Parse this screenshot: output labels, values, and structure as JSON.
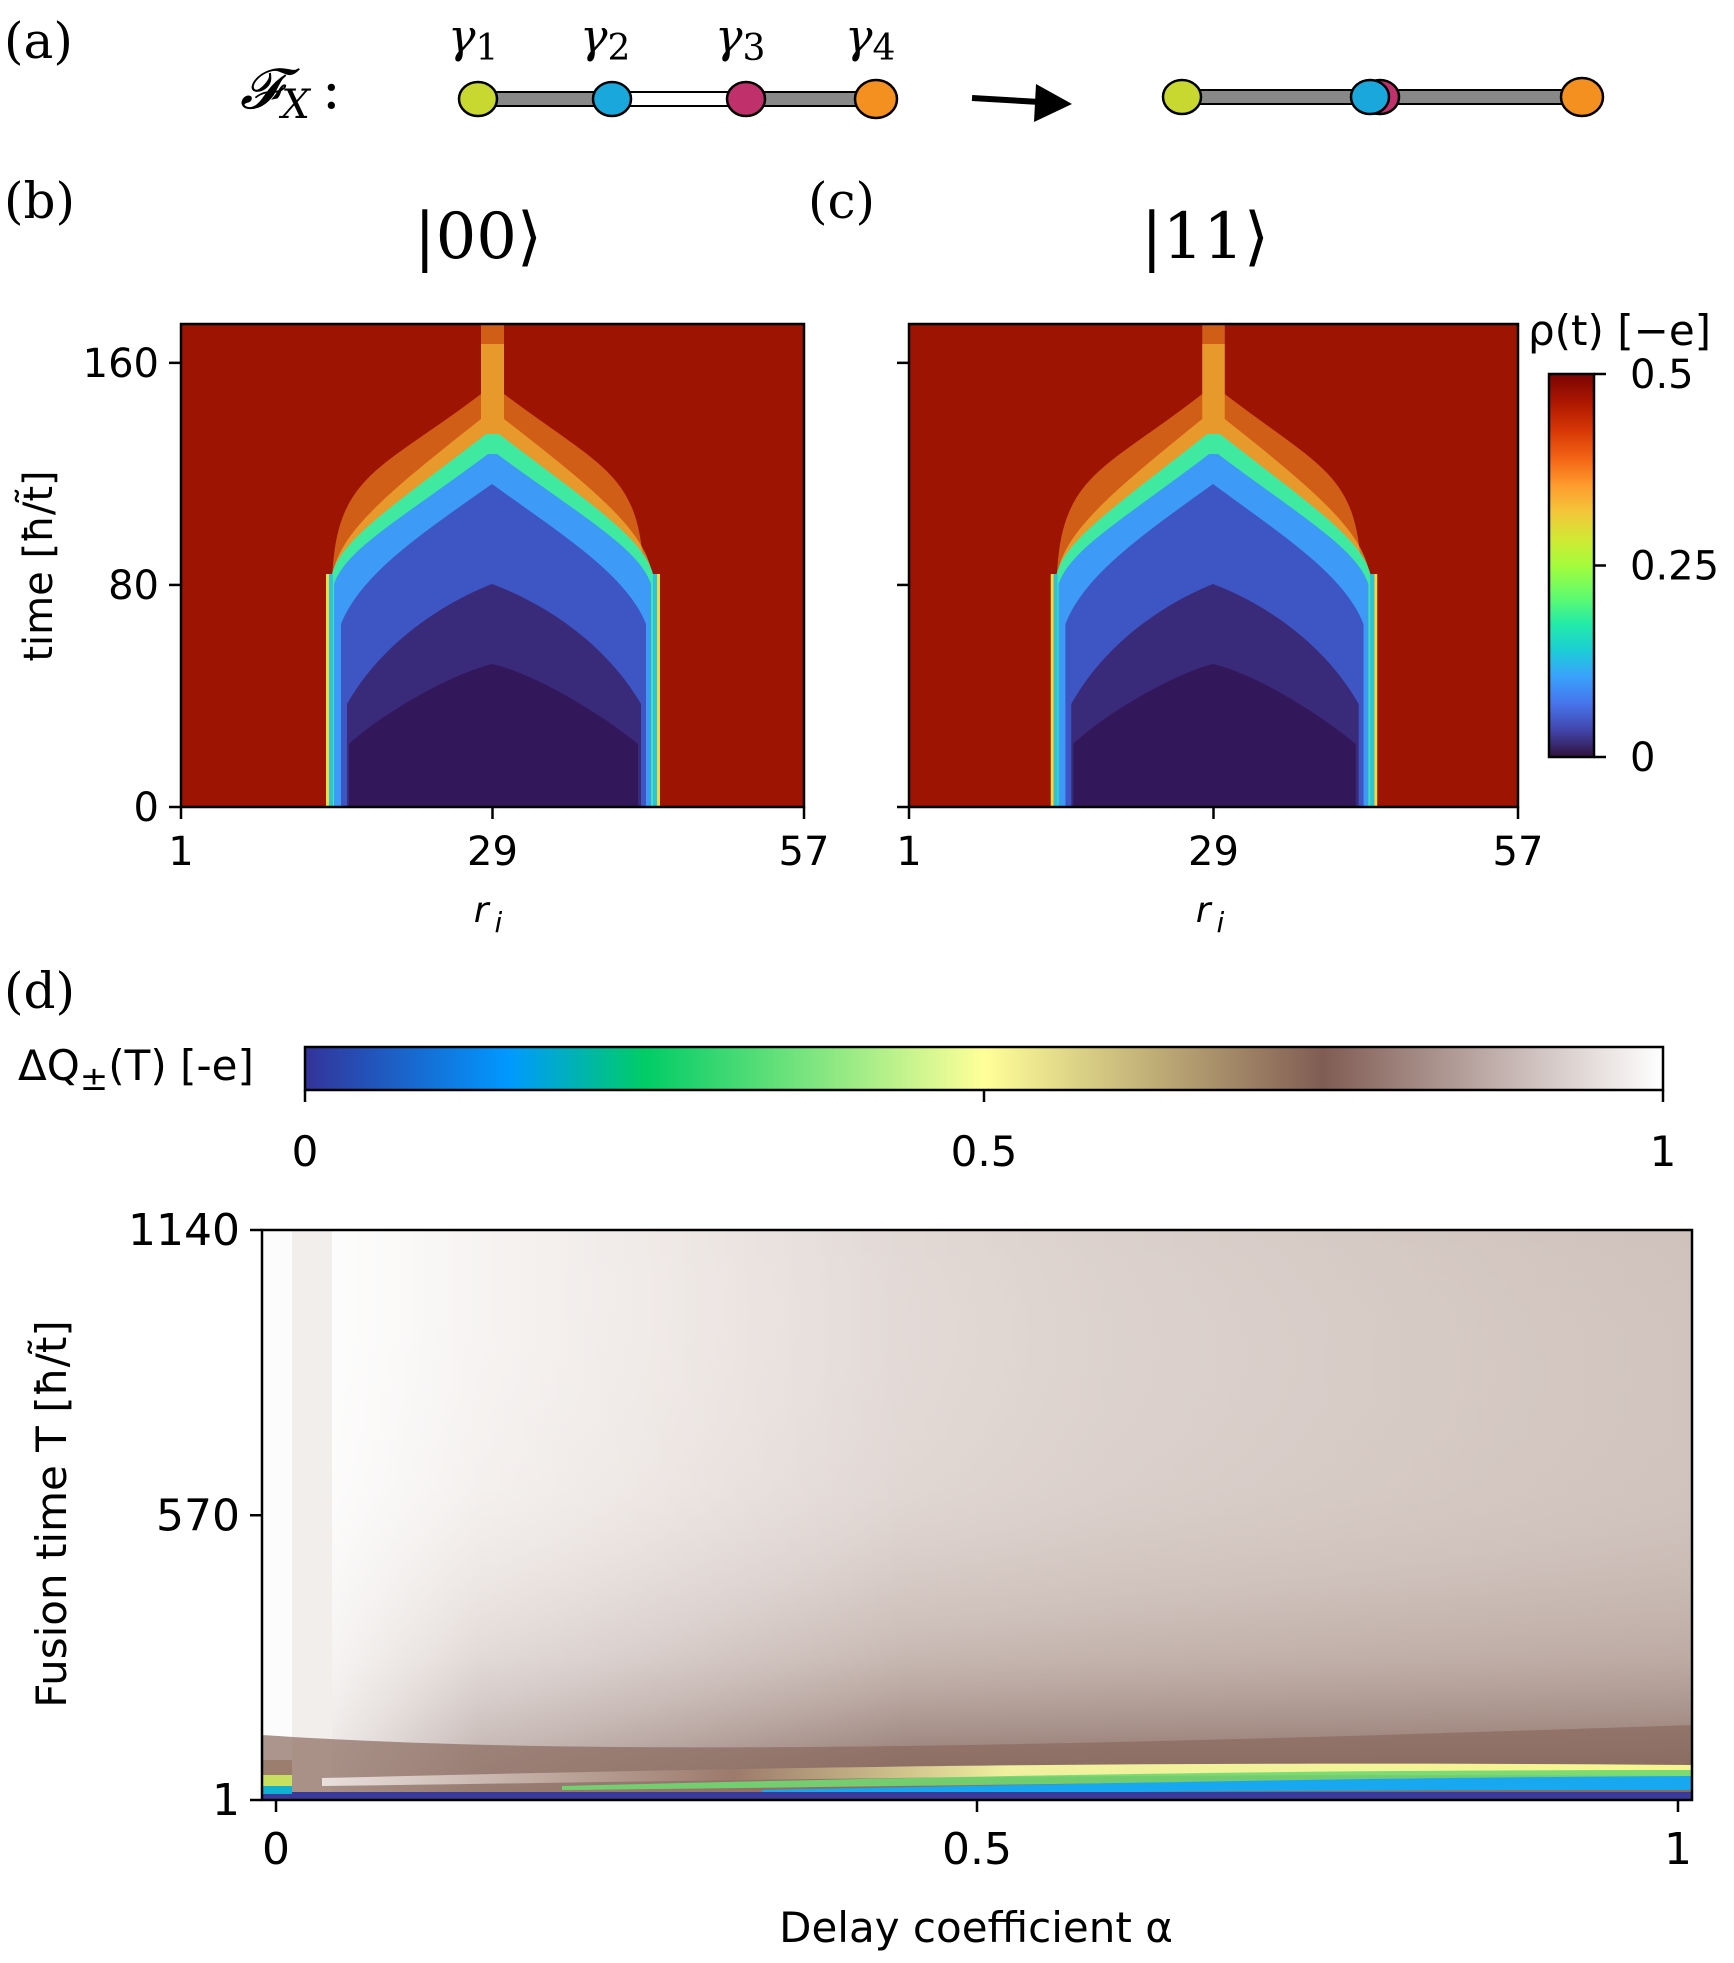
{
  "panel_labels": {
    "a": "(a)",
    "b": "(b)",
    "c": "(c)",
    "d": "(d)"
  },
  "schematic": {
    "operator_label": "𝓕",
    "operator_subscript": "X",
    "operator_colon": ":",
    "gamma_labels": [
      "γ1",
      "γ2",
      "γ3",
      "γ4"
    ],
    "gamma_subscripts": [
      "1",
      "2",
      "3",
      "4"
    ],
    "gamma_symbol": "γ",
    "colors": [
      "#c8d830",
      "#1aa8dc",
      "#c0306a",
      "#f39020"
    ],
    "arrow_icon": "right-arrow-icon"
  },
  "chart_data": [
    {
      "type": "heatmap",
      "panel": "b",
      "title": "|00⟩",
      "xlabel": "r",
      "xlabel_subscript": "i",
      "ylabel": "time [ħ/t̃]",
      "xticks": [
        1,
        29,
        57
      ],
      "yticks": [
        0,
        80,
        160
      ],
      "xlim": [
        1,
        57
      ],
      "ylim": [
        0,
        174
      ],
      "colormap": "turbo",
      "description_points": {
        "depleted_region_r": [
          15,
          43
        ],
        "merge_time": 150
      }
    },
    {
      "type": "heatmap",
      "panel": "c",
      "title": "|11⟩",
      "xlabel": "r",
      "xlabel_subscript": "i",
      "ylabel": "",
      "xticks": [
        1,
        29,
        57
      ],
      "yticks": [
        0,
        80,
        160
      ],
      "show_ytick_labels": false,
      "xlim": [
        1,
        57
      ],
      "ylim": [
        0,
        174
      ],
      "colormap": "turbo"
    },
    {
      "type": "colorbar",
      "label": "ρ(t) [−e]",
      "ticks": [
        0,
        0.25,
        0.5
      ],
      "tick_labels": [
        "0",
        "0.25",
        "0.5"
      ],
      "range": [
        0,
        0.5
      ]
    },
    {
      "type": "colorbar",
      "label_prefix": "ΔQ",
      "label_sub": "±",
      "label_suffix": "(T) [-e]",
      "ticks": [
        0,
        0.5,
        1
      ],
      "tick_labels": [
        "0",
        "0.5",
        "1"
      ],
      "range": [
        0,
        1
      ]
    },
    {
      "type": "heatmap",
      "panel": "d",
      "xlabel": "Delay coefficient α",
      "ylabel": "Fusion time T [ħ/t̃]",
      "xticks": [
        0,
        0.5,
        1
      ],
      "xtick_labels": [
        "0",
        "0.5",
        "1"
      ],
      "yticks": [
        1,
        570,
        1140
      ],
      "xlim": [
        -0.01,
        1.01
      ],
      "ylim": [
        1,
        1140
      ],
      "colormap": "terrain"
    }
  ]
}
